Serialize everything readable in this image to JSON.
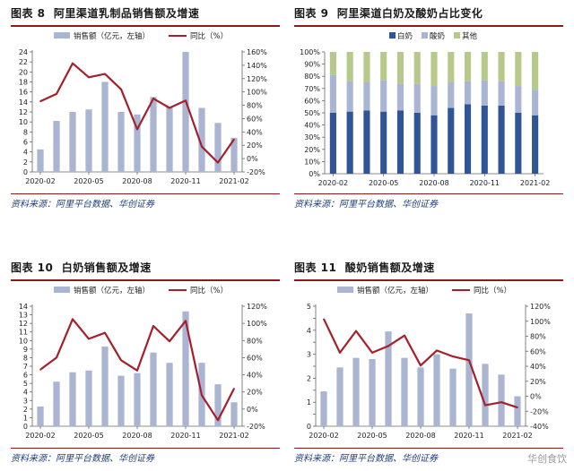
{
  "colors": {
    "bar": "#a9b5d3",
    "line": "#a4202a",
    "dark_blue": "#2f5597",
    "mid_blue": "#a9b5d3",
    "green": "#b6c98a",
    "title_rule": "#8b1a1a"
  },
  "watermark": "华创食饮",
  "chart_data": [
    {
      "type": "bar+line",
      "figure_label": "图表 8",
      "title": "阿里渠道乳制品销售额及增速",
      "legend": {
        "bar": "销售额（亿元，左轴）",
        "line": "同比（%）"
      },
      "source": "资料来源：阿里平台数据、华创证券",
      "x_labels": [
        "2020-02",
        "2020-05",
        "2020-08",
        "2020-11",
        "2021-02"
      ],
      "y_left": {
        "min": 0,
        "max": 24,
        "step": 2
      },
      "y_right": {
        "min": -20,
        "max": 160,
        "step": 20,
        "suffix": "%"
      },
      "bars": [
        4.5,
        10.2,
        12.0,
        12.5,
        18.0,
        12.0,
        11.5,
        15.0,
        13.0,
        24.0,
        12.8,
        9.8,
        6.8
      ],
      "line": [
        86,
        97,
        143,
        122,
        127,
        104,
        44,
        90,
        76,
        87,
        18,
        -6,
        29
      ]
    },
    {
      "type": "stacked-bar",
      "figure_label": "图表 9",
      "title": "阿里渠道白奶及酸奶占比变化",
      "legend": [
        "白奶",
        "酸奶",
        "其他"
      ],
      "source": "资料来源：阿里平台数据、华创证券",
      "x_labels": [
        "2020-02",
        "2020-05",
        "2020-08",
        "2020-11",
        "2021-02"
      ],
      "y": {
        "min": 0,
        "max": 100,
        "step": 10,
        "suffix": "%"
      },
      "series": [
        {
          "name": "白奶",
          "values": [
            50,
            51,
            52,
            51,
            52,
            50,
            48,
            54,
            57,
            56,
            56,
            50,
            48
          ]
        },
        {
          "name": "酸奶",
          "values": [
            31,
            25,
            23,
            26,
            22,
            24,
            24,
            21,
            19,
            21,
            20,
            22,
            21
          ]
        },
        {
          "name": "其他",
          "values": [
            19,
            24,
            25,
            23,
            26,
            26,
            28,
            25,
            24,
            23,
            24,
            28,
            31
          ]
        }
      ]
    },
    {
      "type": "bar+line",
      "figure_label": "图表 10",
      "title": "白奶销售额及增速",
      "legend": {
        "bar": "销售额（亿元，左轴）",
        "line": "同比（%）"
      },
      "source": "资料来源：阿里平台数据、华创证券",
      "x_labels": [
        "2020-02",
        "2020-05",
        "2020-08",
        "2020-11",
        "2021-02"
      ],
      "y_left": {
        "min": 0,
        "max": 14,
        "step": 1
      },
      "y_right": {
        "min": -20,
        "max": 120,
        "step": 20,
        "suffix": "%"
      },
      "bars": [
        2.3,
        5.2,
        6.3,
        6.5,
        9.3,
        5.9,
        6.2,
        8.6,
        7.4,
        13.4,
        7.4,
        4.9,
        2.8
      ],
      "line": [
        46,
        60,
        105,
        82,
        89,
        57,
        45,
        97,
        79,
        103,
        16,
        -13,
        24
      ]
    },
    {
      "type": "bar+line",
      "figure_label": "图表 11",
      "title": "酸奶销售额及增速",
      "legend": {
        "bar": "销售额（亿元，左轴）",
        "line": "同比（%）"
      },
      "source": "资料来源：阿里平台数据、华创证券",
      "x_labels": [
        "2020-02",
        "2020-05",
        "2020-08",
        "2020-11",
        "2021-02"
      ],
      "y_left": {
        "min": 0,
        "max": 5,
        "step": 0.5,
        "label_step": 1
      },
      "y_right": {
        "min": -40,
        "max": 120,
        "step": 20,
        "suffix": "%"
      },
      "bars": [
        1.45,
        2.45,
        2.85,
        2.8,
        3.95,
        2.85,
        2.45,
        3.0,
        2.4,
        4.7,
        2.6,
        2.15,
        1.25
      ],
      "line": [
        103,
        58,
        87,
        58,
        67,
        81,
        41,
        61,
        53,
        48,
        -12,
        -8,
        -15
      ]
    }
  ]
}
